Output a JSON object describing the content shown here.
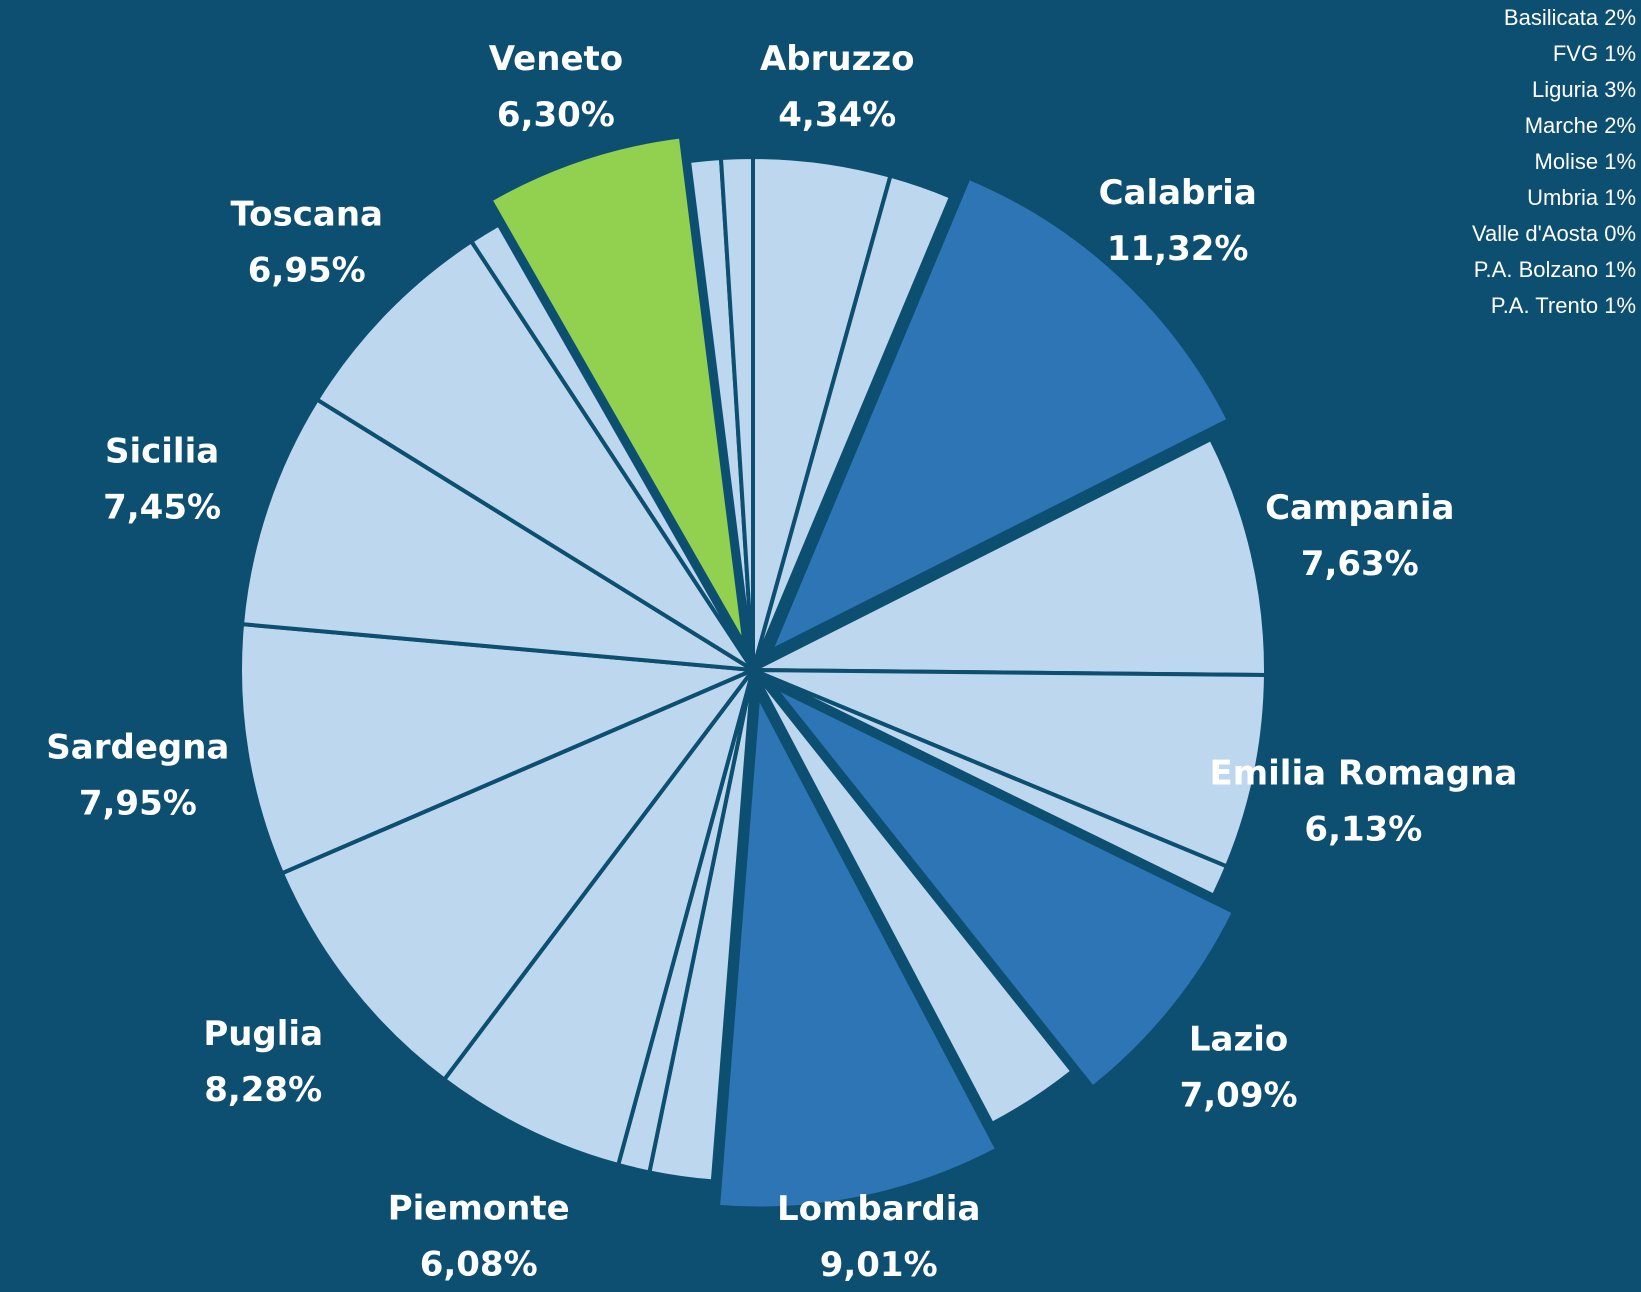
{
  "chart_data": {
    "type": "pie",
    "labels": [
      "Abruzzo",
      "Basilicata",
      "Calabria",
      "Campania",
      "Emilia Romagna",
      "FVG",
      "Lazio",
      "Liguria",
      "Lombardia",
      "Marche",
      "Molise",
      "Piemonte",
      "Puglia",
      "Sardegna",
      "Sicilia",
      "Toscana",
      "Umbria",
      "Veneto",
      "Valle d'Aosta",
      "P.A. Bolzano",
      "P.A. Trento"
    ],
    "values": [
      4.34,
      2,
      11.32,
      7.63,
      6.13,
      1,
      7.09,
      3,
      9.01,
      2,
      1,
      6.08,
      8.28,
      7.95,
      7.45,
      6.95,
      1,
      6.3,
      0,
      1,
      1
    ],
    "value_labels": [
      "4,34%",
      "2%",
      "11,32%",
      "7,63%",
      "6,13%",
      "1%",
      "7,09%",
      "3%",
      "9,01%",
      "2%",
      "1%",
      "6,08%",
      "8,28%",
      "7,95%",
      "7,45%",
      "6,95%",
      "1%",
      "6,30%",
      "0%",
      "1%",
      "1%"
    ],
    "colors": [
      "#bdd7ee",
      "#bdd7ee",
      "#2e75b6",
      "#bdd7ee",
      "#bdd7ee",
      "#bdd7ee",
      "#2e75b6",
      "#bdd7ee",
      "#2e75b6",
      "#bdd7ee",
      "#bdd7ee",
      "#bdd7ee",
      "#bdd7ee",
      "#bdd7ee",
      "#bdd7ee",
      "#bdd7ee",
      "#bdd7ee",
      "#92d050",
      "#bdd7ee",
      "#bdd7ee",
      "#bdd7ee"
    ],
    "exploded": [
      false,
      false,
      true,
      false,
      false,
      false,
      true,
      false,
      true,
      false,
      false,
      false,
      false,
      false,
      false,
      false,
      false,
      true,
      false,
      false,
      false
    ],
    "legend": "top-right"
  }
}
